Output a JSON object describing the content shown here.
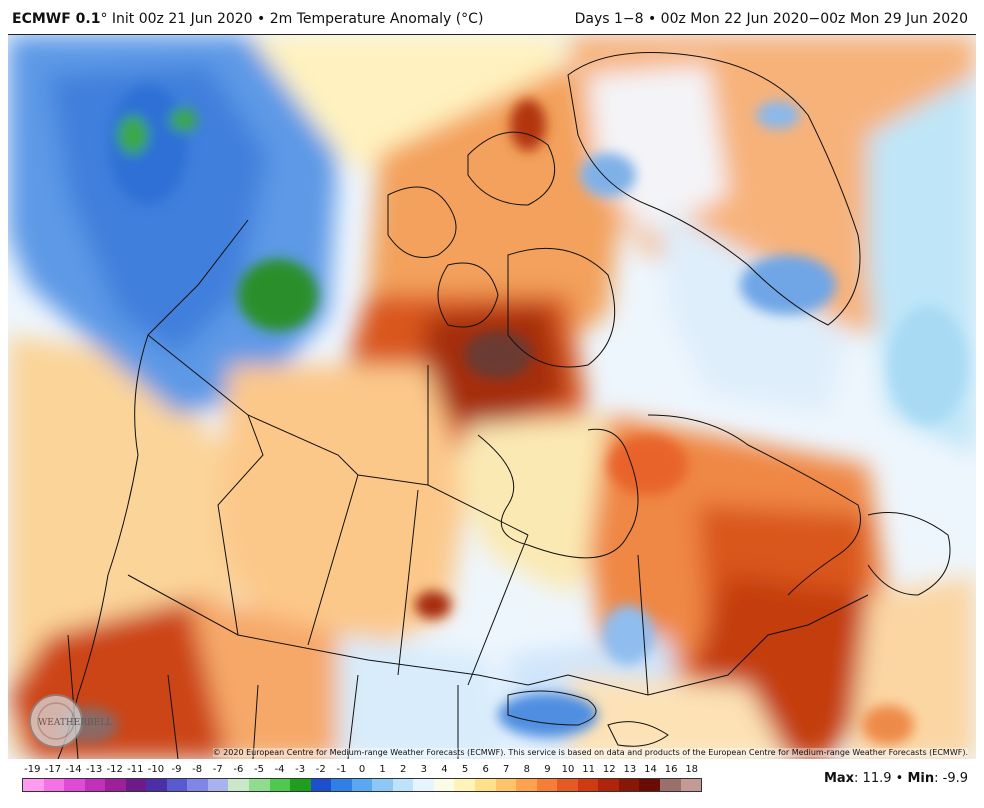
{
  "header": {
    "model": "ECMWF 0.1",
    "init_text": "° Init 00z 21 Jun 2020 • 2m Temperature Anomaly (°C)",
    "valid_text": "Days 1−8 • 00z Mon 22 Jun 2020−00z Mon 29 Jun 2020"
  },
  "map": {
    "region": "Canada and northern United States",
    "projection_note": "",
    "copyright": "© 2020 European Centre for Medium-range Weather Forecasts (ECMWF). This service is based on data and products of the European Centre for Medium-range Weather Forecasts (ECMWF).",
    "watermark_text": "WEATHERBELL"
  },
  "colorbar": {
    "labels": [
      "-19",
      "-17",
      "-14",
      "-13",
      "-12",
      "-11",
      "-10",
      "-9",
      "-8",
      "-7",
      "-6",
      "-5",
      "-4",
      "-3",
      "-2",
      "-1",
      "0",
      "1",
      "2",
      "3",
      "4",
      "5",
      "6",
      "7",
      "8",
      "9",
      "10",
      "11",
      "12",
      "13",
      "14",
      "16",
      "18"
    ],
    "colors": [
      "#ff9cf2",
      "#f472e6",
      "#e04bd6",
      "#c22fb8",
      "#9e1f9a",
      "#6f1a8a",
      "#4a2fa8",
      "#5a5ad0",
      "#7f86e6",
      "#a8b2ee",
      "#c9e8c9",
      "#8fdc8f",
      "#4fc84f",
      "#1f9e1f",
      "#1b4fcf",
      "#2f7fe6",
      "#5aa8f2",
      "#8cc8f6",
      "#bde2fb",
      "#e6f4fd",
      "#fbfbe6",
      "#fff3b8",
      "#ffe08a",
      "#ffc46b",
      "#ffa24f",
      "#f77e38",
      "#e55a22",
      "#cf3a10",
      "#b0240a",
      "#8a1606",
      "#6a0c04",
      "#9c706a",
      "#c49a94"
    ]
  },
  "stats": {
    "max_label": "Max",
    "max_value": ": 11.9",
    "sep": " • ",
    "min_label": "Min",
    "min_value": ": -9.9"
  }
}
